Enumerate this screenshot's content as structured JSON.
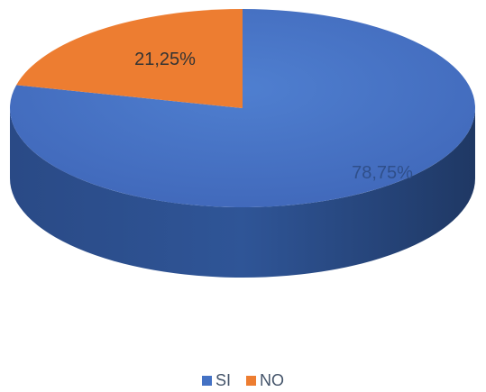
{
  "chart_data": {
    "type": "pie",
    "title": "",
    "style": "3d",
    "start_angle": "12 o'clock",
    "slices": [
      {
        "label": "SI",
        "value": 78.75,
        "display": "78,75%",
        "color": "#4472c4",
        "side_color": "#2c4e8a",
        "label_color": "#2f4f8a"
      },
      {
        "label": "NO",
        "value": 21.25,
        "display": "21,25%",
        "color": "#ed7d31",
        "side_color": "#b05a1f",
        "label_color": "#333333"
      }
    ],
    "legend": {
      "position": "bottom"
    }
  }
}
